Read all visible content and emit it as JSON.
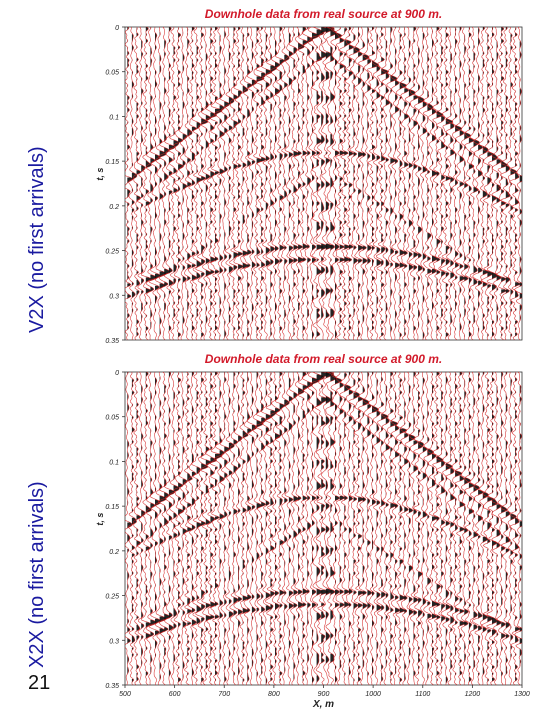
{
  "side_labels": {
    "top": "V2X (no first arrivals)",
    "bottom": "X2X (no first arrivals)"
  },
  "slide_number": "21",
  "colors": {
    "title": "#d21a2a",
    "wiggle_black": "#111111",
    "wiggle_red": "#d41c1c",
    "side_label": "#1a1aa0"
  },
  "chart_data": [
    {
      "type": "seismic-wiggle",
      "title": "Downhole data from real source at 900 m.",
      "xlabel": "",
      "ylabel": "t, s",
      "xlim": [
        500,
        1300
      ],
      "ylim": [
        0,
        0.35
      ],
      "y_inverted": true,
      "y_ticks": [
        "0",
        "0.05",
        "0.1",
        "0.15",
        "0.2",
        "0.25",
        "0.3",
        "0.35"
      ],
      "x_ticks": [],
      "source_x": 900,
      "events": [
        {
          "name": "downgoing",
          "apex_t": 0.0,
          "apex_x": 900,
          "slope_s_per_m": 0.00043
        },
        {
          "name": "reflection-1",
          "apex_t": 0.14,
          "apex_x": 900
        },
        {
          "name": "reflection-2",
          "apex_t": 0.245,
          "apex_x": 900
        },
        {
          "name": "reflection-3",
          "apex_t": 0.26,
          "apex_x": 900
        }
      ],
      "grid": false,
      "legend": "none"
    },
    {
      "type": "seismic-wiggle",
      "title": "Downhole data from real source at 900 m.",
      "xlabel": "X, m",
      "ylabel": "t, s",
      "xlim": [
        500,
        1300
      ],
      "ylim": [
        0,
        0.35
      ],
      "y_inverted": true,
      "y_ticks": [
        "0",
        "0.05",
        "0.1",
        "0.15",
        "0.2",
        "0.25",
        "0.3",
        "0.35"
      ],
      "x_ticks": [
        "500",
        "600",
        "700",
        "800",
        "900",
        "1000",
        "1100",
        "1200",
        "1300"
      ],
      "source_x": 900,
      "events": [
        {
          "name": "downgoing",
          "apex_t": 0.0,
          "apex_x": 900,
          "slope_s_per_m": 0.00043
        },
        {
          "name": "reflection-1",
          "apex_t": 0.14,
          "apex_x": 900
        },
        {
          "name": "reflection-2",
          "apex_t": 0.245,
          "apex_x": 900
        },
        {
          "name": "reflection-3",
          "apex_t": 0.26,
          "apex_x": 900
        }
      ],
      "grid": false,
      "legend": "none"
    }
  ]
}
